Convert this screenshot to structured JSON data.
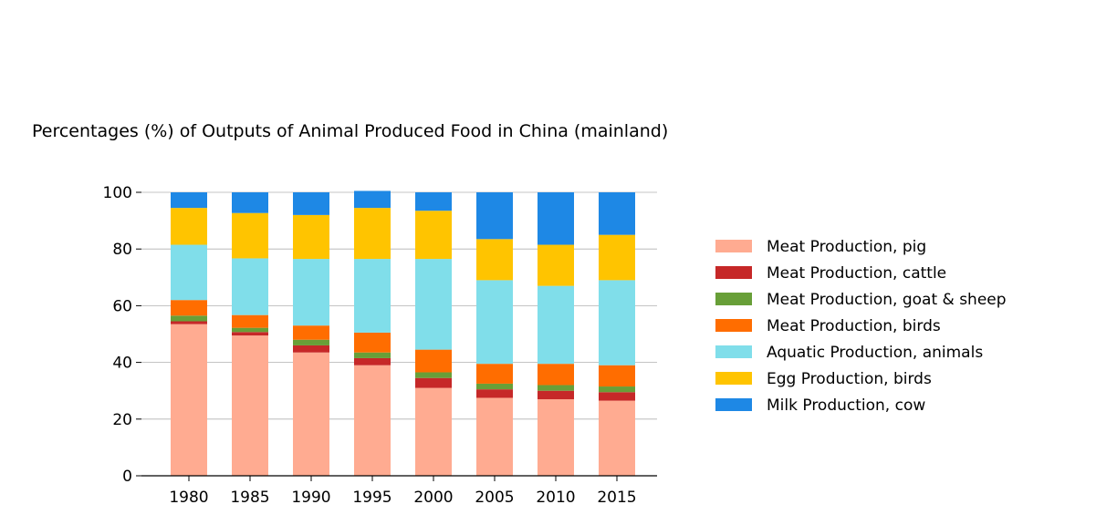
{
  "chart_data": {
    "type": "bar",
    "stacked": true,
    "title": "Percentages (%) of Outputs of Animal Produced Food in China (mainland)",
    "xlabel": "",
    "ylabel": "",
    "categories": [
      "1980",
      "1985",
      "1990",
      "1995",
      "2000",
      "2005",
      "2010",
      "2015"
    ],
    "ylim": [
      0,
      100
    ],
    "yticks": [
      "0",
      "20",
      "40",
      "60",
      "80",
      "100"
    ],
    "grid": "horizontal",
    "legend_position": "right",
    "series": [
      {
        "name": "Meat Production, pig",
        "color": "#ffab91",
        "values": [
          53.5,
          49.5,
          43.5,
          39.0,
          31.0,
          27.5,
          27.0,
          26.5
        ]
      },
      {
        "name": "Meat Production, cattle",
        "color": "#c62828",
        "values": [
          1.0,
          1.2,
          2.5,
          2.5,
          3.5,
          3.0,
          3.0,
          3.0
        ]
      },
      {
        "name": "Meat Production, goat & sheep",
        "color": "#689f38",
        "values": [
          2.0,
          1.5,
          2.0,
          2.0,
          2.0,
          2.0,
          2.0,
          2.0
        ]
      },
      {
        "name": "Meat Production, birds",
        "color": "#ff6d00",
        "values": [
          5.5,
          4.5,
          5.0,
          7.0,
          8.0,
          7.0,
          7.5,
          7.5
        ]
      },
      {
        "name": "Aquatic Production, animals",
        "color": "#80deea",
        "values": [
          19.5,
          20.0,
          23.5,
          26.0,
          32.0,
          29.5,
          27.5,
          30.0
        ]
      },
      {
        "name": "Egg Production, birds",
        "color": "#ffc400",
        "values": [
          13.0,
          16.0,
          15.5,
          18.0,
          17.0,
          14.5,
          14.5,
          16.0
        ]
      },
      {
        "name": "Milk Production, cow",
        "color": "#1e88e5",
        "values": [
          5.5,
          7.3,
          8.0,
          6.0,
          6.5,
          16.5,
          18.5,
          15.0
        ]
      }
    ]
  }
}
